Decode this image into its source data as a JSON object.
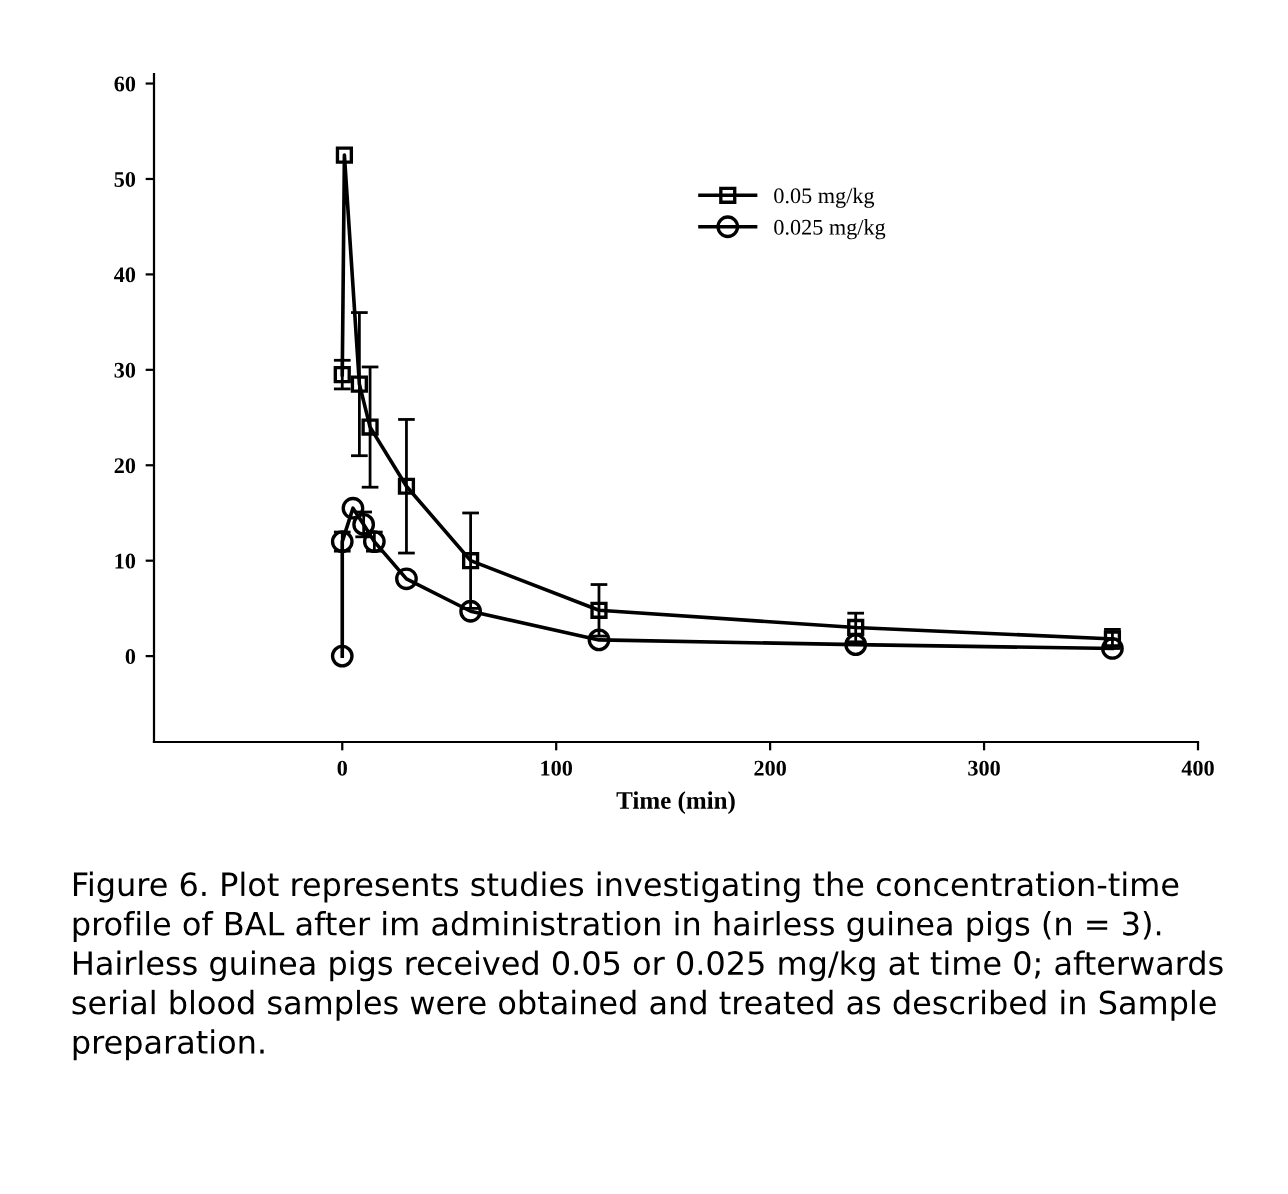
{
  "chart_data": {
    "type": "line",
    "xlabel": "Time (min)",
    "xlim": [
      -88,
      400
    ],
    "xticks": [
      0,
      100,
      200,
      300,
      400
    ],
    "ylim": [
      -9,
      61
    ],
    "yticks": [
      0,
      10,
      20,
      30,
      40,
      50,
      60
    ],
    "grid": false,
    "legend": "top right",
    "line_style": "solid",
    "series": [
      {
        "name": "0.05 mg/kg",
        "color": "#000000",
        "marker": "square",
        "x": [
          0,
          1,
          8,
          13,
          30,
          60,
          120,
          240,
          360
        ],
        "values": [
          29.5,
          52.5,
          28.5,
          24,
          17.8,
          10,
          4.8,
          3,
          1.8
        ],
        "errors": [
          1.5,
          null,
          7.5,
          6.3,
          7,
          5,
          2.7,
          1.5,
          1
        ]
      },
      {
        "name": "0.025 mg/kg",
        "color": "#000000",
        "marker": "circle",
        "x": [
          0,
          0,
          5,
          10,
          15,
          30,
          60,
          120,
          240,
          360
        ],
        "values": [
          0,
          12,
          15.5,
          13.8,
          12,
          8.1,
          4.7,
          1.7,
          1.2,
          0.8
        ],
        "errors": [
          null,
          1,
          null,
          1.3,
          1,
          null,
          null,
          null,
          null,
          null
        ]
      }
    ],
    "annotations": [
      "Figure 6. Plot represents studies investigating the concentration-time profile of BAL after im administration in hairless guinea pigs (n = 3). Hairless guinea pigs received 0.05 or 0.025 mg/kg at time 0; afterwards serial blood samples were obtained and treated as described in Sample preparation."
    ]
  }
}
